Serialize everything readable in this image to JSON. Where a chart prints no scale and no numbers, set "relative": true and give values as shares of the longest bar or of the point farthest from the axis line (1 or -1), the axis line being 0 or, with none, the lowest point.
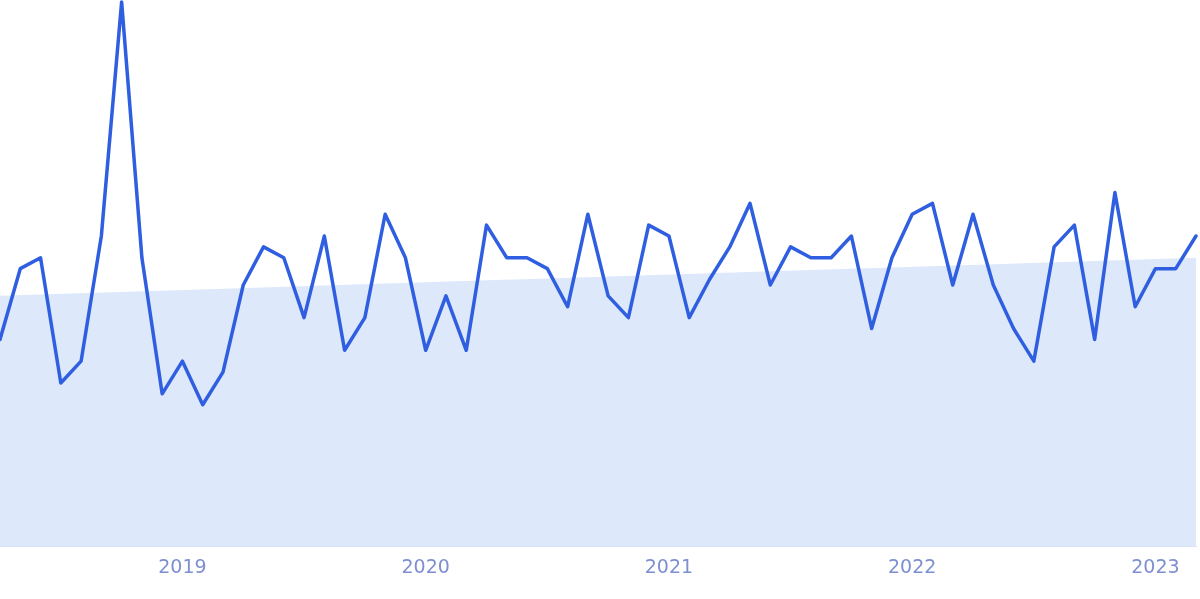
{
  "chart_data": {
    "type": "line",
    "relative": true,
    "legend": false,
    "marker": "none",
    "line_style": "solid",
    "x": [
      "2018-04",
      "2018-05",
      "2018-06",
      "2018-07",
      "2018-08",
      "2018-09",
      "2018-10",
      "2018-11",
      "2018-12",
      "2019-01",
      "2019-02",
      "2019-03",
      "2019-04",
      "2019-05",
      "2019-06",
      "2019-07",
      "2019-08",
      "2019-09",
      "2019-10",
      "2019-11",
      "2019-12",
      "2020-01",
      "2020-02",
      "2020-03",
      "2020-04",
      "2020-05",
      "2020-06",
      "2020-07",
      "2020-08",
      "2020-09",
      "2020-10",
      "2020-11",
      "2020-12",
      "2021-01",
      "2021-02",
      "2021-03",
      "2021-04",
      "2021-05",
      "2021-06",
      "2021-07",
      "2021-08",
      "2021-09",
      "2021-10",
      "2021-11",
      "2021-12",
      "2022-01",
      "2022-02",
      "2022-03",
      "2022-04",
      "2022-05",
      "2022-06",
      "2022-07",
      "2022-08",
      "2022-09",
      "2022-10",
      "2022-11",
      "2022-12",
      "2023-01",
      "2023-02",
      "2023-03"
    ],
    "xlim": [
      "2018-04",
      "2023-03"
    ],
    "xticks": [
      "2019",
      "2020",
      "2021",
      "2022",
      "2023"
    ],
    "series": [
      {
        "type": "area",
        "color": "#dde9fa",
        "x": [
          "2018-04",
          "2023-03"
        ],
        "values": [
          0.46,
          0.53
        ]
      },
      {
        "color": "#2f5fe0",
        "values": [
          0.38,
          0.51,
          0.53,
          0.3,
          0.34,
          0.57,
          1,
          0.53,
          0.28,
          0.34,
          0.26,
          0.32,
          0.48,
          0.55,
          0.53,
          0.42,
          0.57,
          0.36,
          0.42,
          0.61,
          0.53,
          0.36,
          0.46,
          0.36,
          0.59,
          0.53,
          0.53,
          0.51,
          0.44,
          0.61,
          0.46,
          0.42,
          0.59,
          0.57,
          0.42,
          0.49,
          0.55,
          0.63,
          0.48,
          0.55,
          0.53,
          0.53,
          0.57,
          0.4,
          0.53,
          0.61,
          0.63,
          0.48,
          0.61,
          0.48,
          0.4,
          0.34,
          0.55,
          0.59,
          0.38,
          0.65,
          0.44,
          0.51,
          0.51,
          0.57
        ]
      }
    ]
  }
}
